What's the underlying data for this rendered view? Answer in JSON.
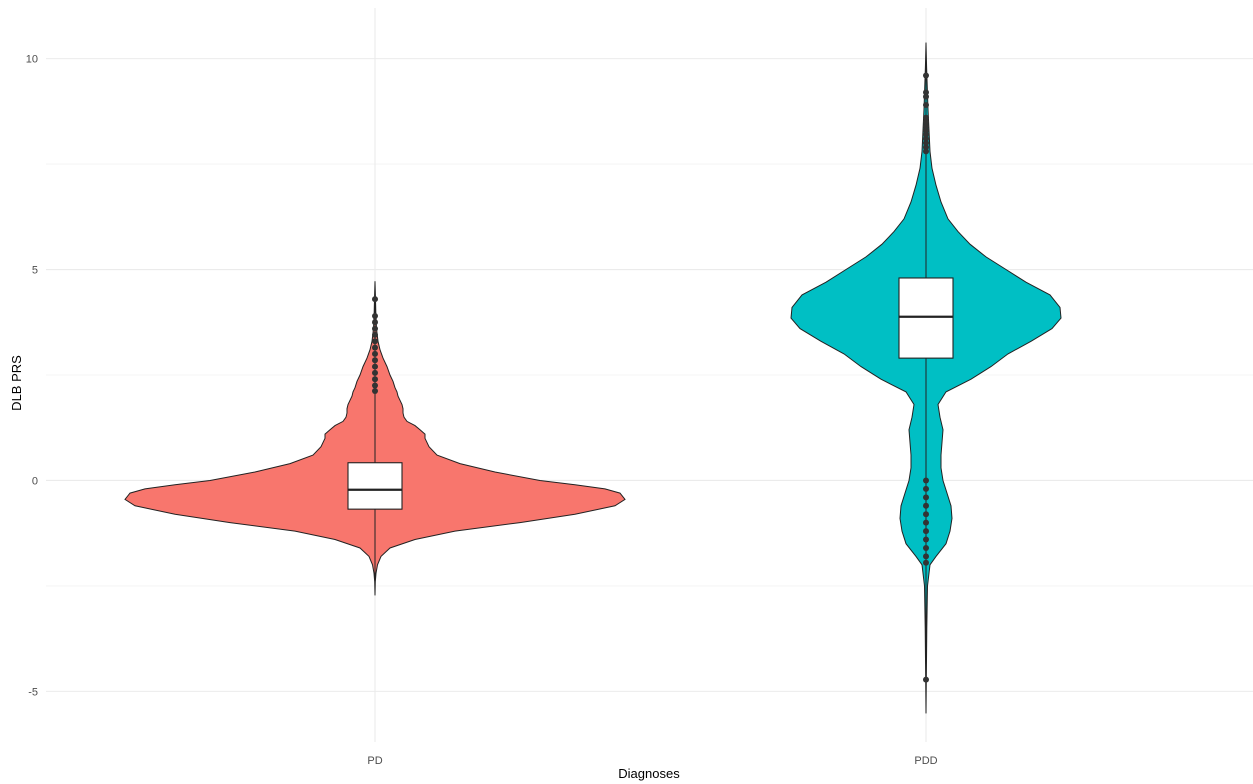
{
  "chart_data": {
    "type": "violin",
    "xlabel": "Diagnoses",
    "ylabel": "DLB PRS",
    "categories": [
      "PD",
      "PDD"
    ],
    "ylim": [
      -6.2,
      11.2
    ],
    "yticks": [
      -5,
      0,
      5,
      10
    ],
    "ytick_labels": [
      "-5",
      "0",
      "5",
      "10"
    ],
    "grid": true,
    "legend": "none",
    "colors": {
      "PD": "#F8766D",
      "PDD": "#00BFC4"
    },
    "series": [
      {
        "category": "PD",
        "min": -2.72,
        "max": 4.72,
        "q1": -0.68,
        "median": -0.22,
        "q3": 0.42,
        "whisker_low": -2.72,
        "whisker_high": 4.72,
        "outliers": [
          2.12,
          2.25,
          2.4,
          2.55,
          2.7,
          2.85,
          3.0,
          3.15,
          3.3,
          3.45,
          3.6,
          3.75,
          3.9,
          4.3
        ],
        "density": [
          [
            -2.72,
            0.0
          ],
          [
            -2.4,
            0.3
          ],
          [
            -2.2,
            1.0
          ],
          [
            -2.0,
            2.5
          ],
          [
            -1.8,
            6
          ],
          [
            -1.6,
            15
          ],
          [
            -1.4,
            40
          ],
          [
            -1.2,
            80
          ],
          [
            -1.0,
            145
          ],
          [
            -0.8,
            200
          ],
          [
            -0.6,
            240
          ],
          [
            -0.45,
            250
          ],
          [
            -0.3,
            245
          ],
          [
            -0.2,
            230
          ],
          [
            -0.1,
            200
          ],
          [
            0.0,
            165
          ],
          [
            0.2,
            120
          ],
          [
            0.4,
            85
          ],
          [
            0.6,
            62
          ],
          [
            0.8,
            54
          ],
          [
            1.0,
            50
          ],
          [
            1.1,
            50
          ],
          [
            1.2,
            45
          ],
          [
            1.3,
            40
          ],
          [
            1.4,
            32
          ],
          [
            1.5,
            29
          ],
          [
            1.6,
            28
          ],
          [
            1.7,
            28
          ],
          [
            1.8,
            27
          ],
          [
            1.9,
            25
          ],
          [
            2.0,
            23
          ],
          [
            2.1,
            22
          ],
          [
            2.2,
            20
          ],
          [
            2.35,
            18
          ],
          [
            2.5,
            15
          ],
          [
            2.7,
            12
          ],
          [
            2.9,
            8
          ],
          [
            3.1,
            5
          ],
          [
            3.3,
            3
          ],
          [
            3.6,
            1.5
          ],
          [
            4.0,
            0.8
          ],
          [
            4.4,
            0.4
          ],
          [
            4.72,
            0.0
          ]
        ]
      },
      {
        "category": "PDD",
        "min": -5.52,
        "max": 10.38,
        "q1": 2.9,
        "median": 3.88,
        "q3": 4.8,
        "whisker_low": -1.95,
        "whisker_high": 7.8,
        "outliers": [
          -4.72,
          -1.95,
          -1.8,
          -1.6,
          -1.4,
          -1.2,
          -1.0,
          -0.8,
          -0.6,
          -0.4,
          -0.2,
          0.0,
          7.8,
          7.9,
          8.0,
          8.1,
          8.2,
          8.3,
          8.4,
          8.5,
          8.6,
          8.9,
          9.1,
          9.2,
          9.6
        ],
        "density": [
          [
            -5.52,
            0.0
          ],
          [
            -4.5,
            0.4
          ],
          [
            -3.5,
            0.8
          ],
          [
            -2.5,
            1.5
          ],
          [
            -2.0,
            4
          ],
          [
            -1.8,
            10
          ],
          [
            -1.5,
            20
          ],
          [
            -1.2,
            24
          ],
          [
            -0.9,
            26
          ],
          [
            -0.6,
            25
          ],
          [
            -0.3,
            21
          ],
          [
            0.0,
            17
          ],
          [
            0.3,
            15
          ],
          [
            0.6,
            15
          ],
          [
            0.9,
            16
          ],
          [
            1.2,
            17
          ],
          [
            1.5,
            14
          ],
          [
            1.8,
            12
          ],
          [
            2.1,
            20
          ],
          [
            2.4,
            45
          ],
          [
            2.7,
            65
          ],
          [
            3.0,
            82
          ],
          [
            3.3,
            105
          ],
          [
            3.6,
            126
          ],
          [
            3.85,
            135
          ],
          [
            4.1,
            134
          ],
          [
            4.4,
            124
          ],
          [
            4.7,
            100
          ],
          [
            5.0,
            80
          ],
          [
            5.3,
            60
          ],
          [
            5.6,
            44
          ],
          [
            5.9,
            32
          ],
          [
            6.2,
            22
          ],
          [
            6.6,
            15
          ],
          [
            7.0,
            10
          ],
          [
            7.4,
            6
          ],
          [
            7.8,
            4
          ],
          [
            8.3,
            3
          ],
          [
            8.8,
            2
          ],
          [
            9.3,
            1.3
          ],
          [
            9.8,
            0.6
          ],
          [
            10.38,
            0.0
          ]
        ]
      }
    ]
  }
}
